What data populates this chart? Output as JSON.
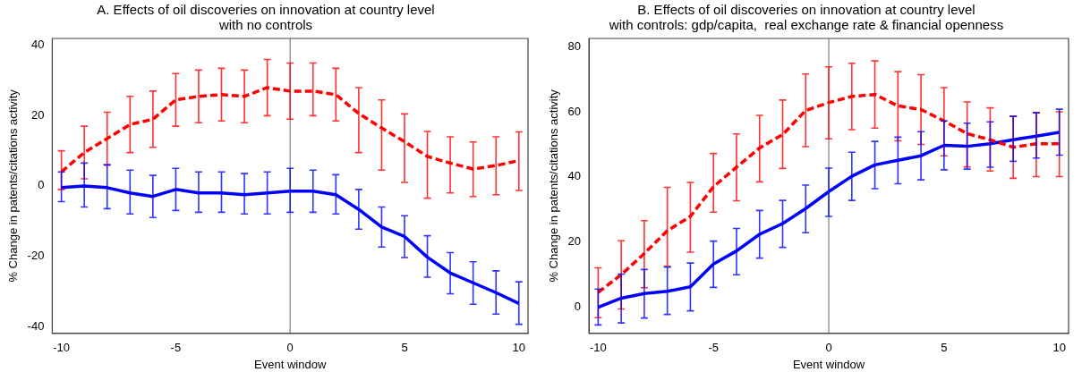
{
  "chart_data": [
    {
      "type": "line",
      "title": "A. Effects of oil discoveries on innovation at country level\nwith no controls",
      "xlabel": "Event window",
      "ylabel": "% Change in patents/citations activity",
      "x": [
        -10,
        -9,
        -8,
        -7,
        -6,
        -5,
        -4,
        -3,
        -2,
        -1,
        0,
        1,
        2,
        3,
        4,
        5,
        6,
        7,
        8,
        9,
        10
      ],
      "xlim": [
        -10.4,
        10.4
      ],
      "xticks": [
        -10,
        -5,
        0,
        5,
        10
      ],
      "ylim": [
        -42,
        42
      ],
      "yticks": [
        -40,
        -20,
        0,
        20,
        40
      ],
      "grid": false,
      "legend": false,
      "marker": "none",
      "ref_lines": [
        {
          "axis": "x",
          "value": 0,
          "color": "#808080"
        }
      ],
      "series": [
        {
          "color": "#ff0000",
          "line_style": "dashed",
          "values": [
            4,
            9.5,
            13.5,
            17.5,
            19,
            24.5,
            25.5,
            26,
            25.5,
            28,
            27,
            27,
            26,
            20.6,
            16.5,
            12.6,
            8.4,
            6.5,
            4.8,
            5.8,
            7.2
          ],
          "errors": [
            [
              -1,
              10
            ],
            [
              2,
              17
            ],
            [
              6,
              21
            ],
            [
              9.5,
              25.5
            ],
            [
              11,
              27
            ],
            [
              17,
              32
            ],
            [
              18,
              33
            ],
            [
              18.5,
              33.5
            ],
            [
              18,
              33
            ],
            [
              20,
              36
            ],
            [
              19,
              35
            ],
            [
              20,
              35
            ],
            [
              18.5,
              33.5
            ],
            [
              9.5,
              28
            ],
            [
              4.5,
              24.5
            ],
            [
              1,
              20.5
            ],
            [
              -3.5,
              15.5
            ],
            [
              -2,
              14
            ],
            [
              -3,
              12.5
            ],
            [
              -2.5,
              14
            ],
            [
              -1.3,
              15.4
            ]
          ]
        },
        {
          "color": "#0000ff",
          "line_style": "solid",
          "values": [
            -0.5,
            0,
            -0.5,
            -2,
            -3,
            -1,
            -2,
            -2,
            -2.5,
            -2,
            -1.5,
            -1.5,
            -2.5,
            -6.7,
            -11.7,
            -14.4,
            -20.3,
            -24.8,
            -27.6,
            -30.4,
            -33.5
          ],
          "errors": [
            [
              -4.5,
              4
            ],
            [
              -6,
              6.5
            ],
            [
              -6.5,
              6
            ],
            [
              -8,
              4.5
            ],
            [
              -9,
              3
            ],
            [
              -7,
              5
            ],
            [
              -7.5,
              4
            ],
            [
              -7.5,
              4
            ],
            [
              -8,
              3.5
            ],
            [
              -8,
              4
            ],
            [
              -7.5,
              5
            ],
            [
              -7.5,
              4.5
            ],
            [
              -8,
              3.2
            ],
            [
              -12.3,
              -1
            ],
            [
              -17.4,
              -6
            ],
            [
              -20.4,
              -8.5
            ],
            [
              -26,
              -14.2
            ],
            [
              -30.7,
              -19
            ],
            [
              -33.7,
              -21.6
            ],
            [
              -36.5,
              -24.2
            ],
            [
              -39.4,
              -27.3
            ]
          ]
        }
      ]
    },
    {
      "type": "line",
      "title": "B. Effects of oil discoveries on innovation at country level\nwith controls: gdp/capita,  real exchange rate & financial openness",
      "xlabel": "Event window",
      "ylabel": "% Change in patents/citations activity",
      "x": [
        -10,
        -9,
        -8,
        -7,
        -6,
        -5,
        -4,
        -3,
        -2,
        -1,
        0,
        1,
        2,
        3,
        4,
        5,
        6,
        7,
        8,
        9,
        10
      ],
      "xlim": [
        -10.4,
        10.4
      ],
      "xticks": [
        -10,
        -5,
        0,
        5,
        10
      ],
      "ylim": [
        -8,
        82.5
      ],
      "yticks": [
        0,
        20,
        40,
        60,
        80
      ],
      "grid": false,
      "legend": false,
      "marker": "none",
      "ref_lines": [
        {
          "axis": "x",
          "value": 0,
          "color": "#808080"
        }
      ],
      "series": [
        {
          "color": "#ff0000",
          "line_style": "dashed",
          "values": [
            4.6,
            10,
            16.5,
            23.5,
            27.9,
            37,
            43,
            48.9,
            53,
            60.4,
            62.8,
            64.7,
            65.3,
            61.8,
            60.7,
            57.2,
            53.3,
            51.4,
            49.1,
            50.2,
            50.2
          ],
          "errors": [
            [
              -3.2,
              12.1
            ],
            [
              -0.5,
              20.4
            ],
            [
              6,
              26.6
            ],
            [
              12.6,
              36.8
            ],
            [
              16.9,
              38.3
            ],
            [
              29.2,
              47.2
            ],
            [
              32.7,
              53.2
            ],
            [
              38.5,
              58.9
            ],
            [
              42.6,
              63.6
            ],
            [
              49.3,
              71.6
            ],
            [
              51.7,
              73.8
            ],
            [
              54.5,
              74.9
            ],
            [
              55,
              75.6
            ],
            [
              51.1,
              72.3
            ],
            [
              50,
              71.4
            ],
            [
              46.5,
              67.4
            ],
            [
              43.1,
              63
            ],
            [
              41.8,
              61.2
            ],
            [
              39.6,
              58.6
            ],
            [
              40.1,
              59.8
            ],
            [
              40.1,
              60
            ]
          ]
        },
        {
          "color": "#0000ff",
          "line_style": "solid",
          "values": [
            0,
            2.8,
            4.2,
            4.9,
            6.3,
            13.3,
            17.3,
            22.4,
            25.7,
            30.3,
            35.5,
            40.2,
            43.7,
            45.1,
            46.5,
            49.7,
            49.4,
            50.2,
            51.4,
            52.5,
            53.7
          ],
          "errors": [
            [
              -5.4,
              5.6
            ],
            [
              -4.8,
              10.2
            ],
            [
              -3.3,
              11.6
            ],
            [
              -2.2,
              12.3
            ],
            [
              -1.1,
              13.6
            ],
            [
              6.1,
              20.3
            ],
            [
              10,
              24.2
            ],
            [
              15.1,
              29.7
            ],
            [
              18.4,
              32.8
            ],
            [
              22.9,
              37.5
            ],
            [
              27.9,
              42.7
            ],
            [
              32.8,
              47.6
            ],
            [
              36.4,
              50.9
            ],
            [
              37.9,
              52.2
            ],
            [
              39.1,
              53.9
            ],
            [
              42.2,
              57.2
            ],
            [
              42.4,
              56.5
            ],
            [
              43,
              56.9
            ],
            [
              44.8,
              58.6
            ],
            [
              45.8,
              59.7
            ],
            [
              46.7,
              60.8
            ]
          ]
        }
      ]
    }
  ]
}
